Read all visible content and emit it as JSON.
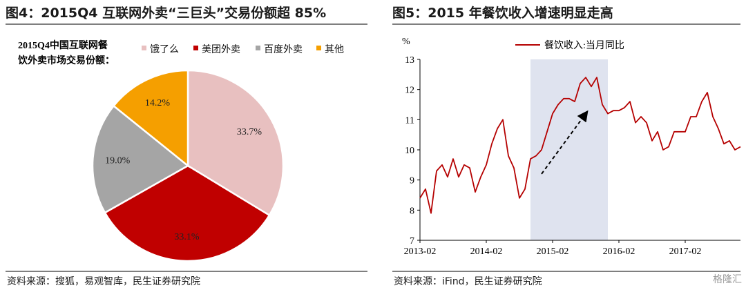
{
  "left": {
    "title": "图4：2015Q4 互联网外卖“三巨头”交易份额超 85%",
    "source": "资料来源：搜狐，易观智库，民生证券研究院",
    "chart_data": {
      "type": "pie",
      "title_lines": [
        "2015Q4中国互联网餐",
        "饮外卖市场交易份额："
      ],
      "slices": [
        {
          "name": "饿了么",
          "value": 33.7,
          "label": "33.7%",
          "color": "#e8c0c0"
        },
        {
          "name": "美团外卖",
          "value": 33.1,
          "label": "33.1%",
          "color": "#c00000"
        },
        {
          "name": "百度外卖",
          "value": 19.0,
          "label": "19.0%",
          "color": "#a5a5a5"
        },
        {
          "name": "其他",
          "value": 14.2,
          "label": "14.2%",
          "color": "#f59f00"
        }
      ],
      "legend_position": "top-right"
    }
  },
  "right": {
    "title": "图5：2015 年餐饮收入增速明显走高",
    "source": "资料来源：iFind，民生证券研究院",
    "chart_data": {
      "type": "line",
      "unit": "%",
      "ylim": [
        7,
        13
      ],
      "yticks": [
        7,
        8,
        9,
        10,
        11,
        12,
        13
      ],
      "xticks": [
        "2013-02",
        "2014-02",
        "2015-02",
        "2016-02",
        "2017-02"
      ],
      "x_start": "2013-02",
      "x_end": "2017-12",
      "series": [
        {
          "name": "餐饮收入:当月同比",
          "color": "#b50000",
          "values": [
            8.4,
            8.7,
            7.9,
            9.3,
            9.5,
            9.1,
            9.7,
            9.1,
            9.5,
            9.4,
            8.6,
            9.1,
            9.5,
            10.2,
            10.7,
            11.0,
            9.8,
            9.4,
            8.4,
            8.7,
            9.7,
            9.8,
            10.0,
            10.6,
            11.2,
            11.5,
            11.7,
            11.7,
            11.6,
            12.2,
            12.4,
            12.1,
            12.4,
            11.5,
            11.2,
            11.3,
            11.3,
            11.4,
            11.6,
            10.9,
            11.1,
            10.9,
            10.3,
            10.6,
            10.0,
            10.1,
            10.6,
            10.6,
            10.6,
            11.1,
            11.1,
            11.6,
            11.9,
            11.1,
            10.7,
            10.2,
            10.3,
            10.0,
            10.1
          ]
        }
      ],
      "highlight": {
        "from": "2014-10",
        "to": "2015-12",
        "color": "#dfe3ef"
      },
      "annotation": "dashed-arrow-up",
      "legend_position": "top"
    }
  },
  "watermark": "格隆汇"
}
